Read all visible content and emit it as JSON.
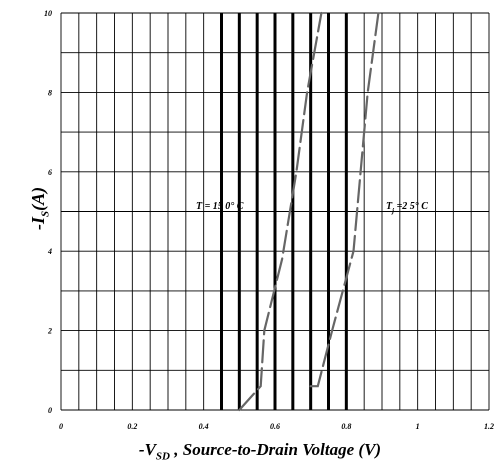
{
  "chart_data": {
    "type": "line",
    "xlabel_prefix": "-V",
    "xlabel_sub": "SD",
    "xlabel_rest": " , Source-to-Drain Voltage (V)",
    "ylabel_main": "-I",
    "ylabel_sub": "S",
    "ylabel_rest": "(A)",
    "xlim": [
      0,
      1.2
    ],
    "ylim": [
      0,
      10
    ],
    "x_ticks": [
      "0",
      "0.2",
      "0.4",
      "0.6",
      "0.8",
      "1",
      "1.2"
    ],
    "y_ticks": [
      "0",
      "2",
      "4",
      "6",
      "8",
      "10"
    ],
    "grid": true,
    "series": [
      {
        "name": "T = 150° C",
        "label_main": "T",
        "label_rest": " = 15 0° C",
        "x": [
          0.5,
          0.56,
          0.57,
          0.62,
          0.66,
          0.69,
          0.73
        ],
        "y": [
          0.0,
          0.6,
          2.0,
          3.8,
          6.0,
          8.0,
          10.0
        ]
      },
      {
        "name": "Tj = 25° C",
        "label_main": "T",
        "label_sub": "j",
        "label_rest": " =2 5° C",
        "x": [
          0.7,
          0.72,
          0.76,
          0.79,
          0.82,
          0.86,
          0.89
        ],
        "y": [
          0.6,
          0.6,
          2.0,
          3.0,
          4.0,
          8.0,
          10.0
        ]
      }
    ]
  }
}
